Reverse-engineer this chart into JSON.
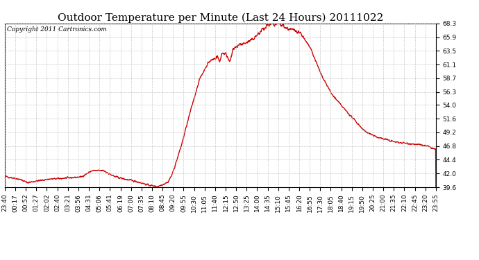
{
  "title": "Outdoor Temperature per Minute (Last 24 Hours) 20111022",
  "copyright": "Copyright 2011 Cartronics.com",
  "line_color": "#cc0000",
  "background_color": "#ffffff",
  "grid_color": "#bbbbbb",
  "ylim": [
    39.6,
    68.3
  ],
  "yticks": [
    39.6,
    42.0,
    44.4,
    46.8,
    49.2,
    51.6,
    54.0,
    56.3,
    58.7,
    61.1,
    63.5,
    65.9,
    68.3
  ],
  "x_labels": [
    "23:40",
    "00:17",
    "00:52",
    "01:27",
    "02:02",
    "02:40",
    "03:21",
    "03:56",
    "04:31",
    "05:06",
    "05:41",
    "06:19",
    "07:00",
    "07:35",
    "08:10",
    "08:45",
    "09:20",
    "09:55",
    "10:30",
    "11:05",
    "11:40",
    "12:15",
    "12:50",
    "13:25",
    "14:00",
    "14:35",
    "15:10",
    "15:45",
    "16:20",
    "16:55",
    "17:30",
    "18:05",
    "18:40",
    "19:15",
    "19:50",
    "20:25",
    "21:00",
    "21:35",
    "22:10",
    "22:45",
    "23:20",
    "23:55"
  ],
  "title_fontsize": 11,
  "tick_fontsize": 6.5,
  "copyright_fontsize": 6.5,
  "line_width": 1.0
}
